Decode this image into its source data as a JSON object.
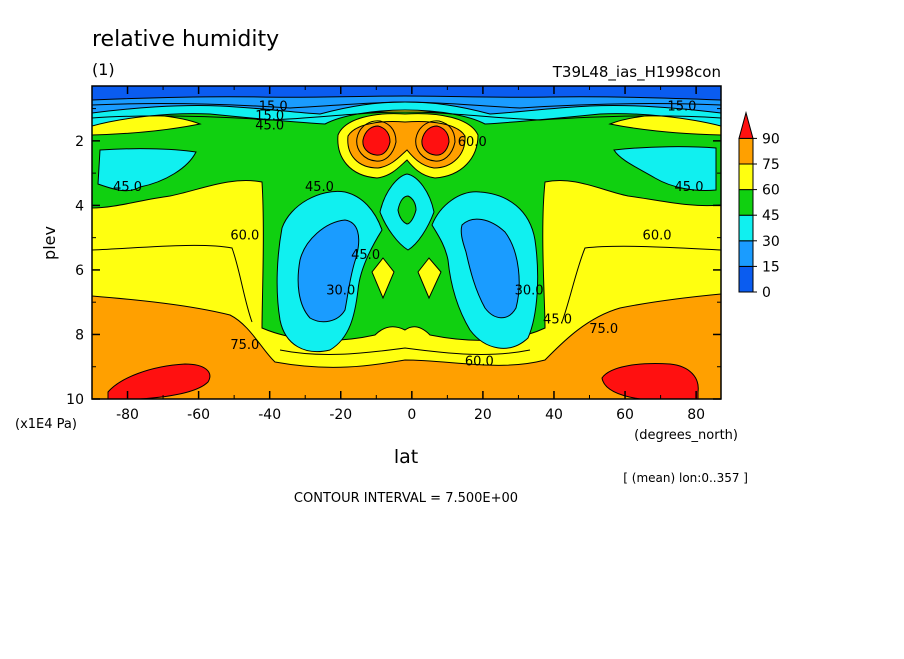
{
  "header": {
    "title": "relative humidity",
    "panel_label": "(1)",
    "run_name": "T39L48_ias_H1998con"
  },
  "footer": {
    "contour_interval": "CONTOUR INTERVAL = 7.500E+00",
    "mean_note": "[ (mean) lon:0..357 ]"
  },
  "chart_data": {
    "type": "heatmap",
    "title": "relative humidity",
    "xlabel": "lat",
    "xunits": "(degrees_north)",
    "ylabel": "plev",
    "yunits": "(x1E4 Pa)",
    "xlim": [
      -90,
      87
    ],
    "ylim": [
      0.3,
      10
    ],
    "y_inverted": true,
    "x_ticks": [
      -80,
      -60,
      -40,
      -20,
      0,
      20,
      40,
      60,
      80
    ],
    "y_ticks": [
      2,
      4,
      6,
      8,
      10
    ],
    "grid": false,
    "legend": "right",
    "colorbar": {
      "levels": [
        0,
        15,
        30,
        45,
        60,
        75,
        90
      ],
      "colors": [
        "#0a5cf0",
        "#1a9cff",
        "#10f0f0",
        "#10d010",
        "#ffff10",
        "#ffa000",
        "#ff1010"
      ],
      "extend": "max"
    },
    "contour_labels": [
      {
        "text": "15.0",
        "lat": -39,
        "plev": 0.9
      },
      {
        "text": "15.0",
        "lat": 76,
        "plev": 0.9
      },
      {
        "text": "15.0",
        "lat": -40,
        "plev": 1.2
      },
      {
        "text": "45.0",
        "lat": -40,
        "plev": 1.5
      },
      {
        "text": "60.0",
        "lat": 17,
        "plev": 2.0
      },
      {
        "text": "45.0",
        "lat": -80,
        "plev": 3.4
      },
      {
        "text": "45.0",
        "lat": 78,
        "plev": 3.4
      },
      {
        "text": "45.0",
        "lat": -26,
        "plev": 3.4
      },
      {
        "text": "60.0",
        "lat": -47,
        "plev": 4.9
      },
      {
        "text": "60.0",
        "lat": 69,
        "plev": 4.9
      },
      {
        "text": "45.0",
        "lat": -13,
        "plev": 5.5
      },
      {
        "text": "30.0",
        "lat": -20,
        "plev": 6.6
      },
      {
        "text": "30.0",
        "lat": 33,
        "plev": 6.6
      },
      {
        "text": "45.0",
        "lat": 41,
        "plev": 7.5
      },
      {
        "text": "75.0",
        "lat": -47,
        "plev": 8.3
      },
      {
        "text": "75.0",
        "lat": 54,
        "plev": 7.8
      },
      {
        "text": "60.0",
        "lat": 19,
        "plev": 8.8
      }
    ]
  }
}
